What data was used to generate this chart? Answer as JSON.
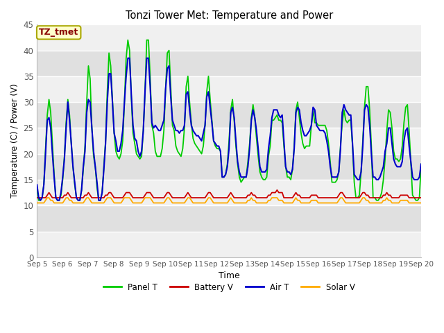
{
  "title": "Tonzi Tower Met: Temperature and Power",
  "xlabel": "Time",
  "ylabel": "Temperature (C) / Power (V)",
  "ylim": [
    0,
    45
  ],
  "yticks": [
    0,
    5,
    10,
    15,
    20,
    25,
    30,
    35,
    40,
    45
  ],
  "x_labels": [
    "Sep 5",
    "Sep 6",
    "Sep 7",
    "Sep 8",
    "Sep 9",
    "Sep 10",
    "Sep 11",
    "Sep 12",
    "Sep 13",
    "Sep 14",
    "Sep 15",
    "Sep 16",
    "Sep 17",
    "Sep 18",
    "Sep 19",
    "Sep 20"
  ],
  "annotation_text": "TZ_tmet",
  "annotation_color": "#880000",
  "annotation_bg": "#ffffcc",
  "annotation_border": "#aaa800",
  "panel_t_color": "#00cc00",
  "battery_v_color": "#cc0000",
  "air_t_color": "#0000cc",
  "solar_v_color": "#ffaa00",
  "bg_outer": "#ffffff",
  "bg_band_light": "#f0f0f0",
  "bg_band_dark": "#e0e0e0",
  "grid_line_color": "#ffffff",
  "panel_t": [
    13.0,
    11.0,
    11.0,
    11.5,
    14.0,
    21.0,
    27.5,
    30.5,
    28.0,
    22.0,
    16.0,
    11.5,
    11.0,
    11.0,
    12.0,
    15.0,
    19.5,
    26.0,
    30.5,
    27.5,
    22.0,
    17.5,
    14.0,
    11.5,
    11.0,
    11.0,
    13.0,
    17.0,
    21.5,
    30.0,
    37.0,
    34.5,
    25.0,
    19.5,
    17.5,
    13.5,
    11.0,
    11.0,
    12.5,
    17.5,
    22.5,
    32.0,
    39.5,
    37.0,
    30.5,
    24.0,
    20.5,
    19.5,
    19.0,
    20.0,
    22.5,
    30.0,
    38.5,
    42.0,
    40.0,
    31.0,
    24.0,
    22.0,
    20.0,
    19.5,
    19.0,
    19.5,
    24.5,
    32.0,
    42.0,
    42.0,
    35.0,
    25.5,
    24.0,
    20.5,
    19.5,
    19.5,
    19.5,
    21.0,
    24.5,
    32.5,
    39.5,
    40.0,
    33.0,
    25.5,
    24.5,
    21.5,
    20.5,
    20.0,
    19.5,
    21.0,
    25.0,
    33.0,
    35.0,
    30.0,
    26.0,
    23.0,
    22.0,
    21.5,
    21.0,
    20.5,
    20.0,
    21.5,
    25.5,
    32.0,
    35.0,
    30.5,
    26.5,
    22.5,
    21.5,
    21.0,
    21.0,
    20.5,
    15.5,
    15.5,
    16.0,
    18.0,
    22.5,
    28.5,
    30.5,
    26.5,
    21.5,
    18.0,
    15.5,
    14.5,
    15.0,
    15.5,
    15.5,
    18.5,
    22.0,
    27.0,
    29.5,
    27.0,
    23.0,
    19.5,
    16.5,
    15.5,
    15.0,
    15.0,
    15.5,
    19.5,
    21.5,
    26.5,
    26.5,
    27.0,
    27.5,
    26.5,
    26.5,
    26.0,
    21.5,
    17.5,
    15.5,
    15.5,
    15.0,
    17.0,
    21.5,
    28.5,
    30.0,
    27.0,
    24.0,
    22.0,
    21.0,
    21.5,
    21.5,
    21.5,
    25.5,
    28.5,
    26.0,
    26.0,
    25.5,
    25.5,
    25.5,
    25.5,
    25.5,
    24.5,
    22.0,
    18.5,
    14.5,
    14.5,
    14.5,
    15.0,
    16.5,
    21.5,
    26.0,
    28.5,
    26.5,
    26.0,
    26.5,
    26.5,
    21.5,
    14.5,
    11.5,
    11.5,
    12.0,
    16.5,
    22.5,
    29.0,
    33.0,
    33.0,
    28.5,
    21.5,
    11.5,
    11.5,
    11.0,
    11.0,
    11.5,
    12.5,
    15.0,
    19.0,
    24.5,
    28.5,
    28.0,
    25.0,
    20.5,
    19.0,
    19.0,
    18.5,
    19.0,
    21.5,
    26.0,
    29.0,
    29.5,
    24.5,
    18.5,
    12.0,
    11.5,
    11.0,
    11.0,
    11.5,
    18.0
  ],
  "air_t": [
    14.0,
    11.5,
    11.0,
    11.5,
    14.0,
    20.0,
    26.5,
    27.0,
    25.0,
    20.0,
    15.5,
    11.5,
    11.0,
    11.0,
    12.5,
    15.5,
    19.0,
    25.0,
    30.0,
    26.5,
    22.0,
    17.5,
    14.5,
    11.5,
    11.0,
    11.0,
    13.0,
    17.5,
    20.5,
    28.0,
    30.5,
    30.0,
    25.0,
    20.5,
    17.5,
    14.5,
    11.0,
    11.0,
    12.5,
    17.0,
    22.0,
    30.0,
    35.5,
    35.5,
    30.0,
    24.0,
    22.5,
    20.5,
    20.5,
    22.0,
    24.5,
    30.0,
    35.0,
    38.5,
    38.5,
    31.5,
    25.5,
    23.0,
    22.5,
    20.5,
    19.5,
    20.5,
    24.5,
    32.0,
    38.5,
    38.5,
    33.0,
    26.0,
    25.0,
    25.5,
    25.0,
    24.5,
    24.5,
    25.5,
    26.5,
    32.5,
    36.5,
    37.0,
    31.0,
    26.5,
    25.5,
    24.5,
    24.5,
    24.0,
    24.5,
    24.5,
    25.5,
    31.5,
    32.0,
    28.5,
    25.5,
    24.5,
    24.0,
    23.5,
    23.5,
    23.0,
    22.5,
    24.0,
    25.5,
    31.0,
    32.0,
    29.0,
    26.0,
    22.5,
    22.0,
    21.5,
    21.5,
    20.5,
    15.5,
    15.5,
    16.0,
    17.5,
    21.0,
    28.0,
    29.0,
    27.0,
    22.5,
    18.5,
    16.5,
    15.5,
    15.5,
    15.5,
    15.5,
    17.5,
    21.0,
    26.5,
    28.5,
    27.0,
    24.5,
    21.0,
    17.5,
    16.5,
    16.5,
    16.5,
    17.0,
    21.0,
    23.5,
    27.0,
    28.5,
    28.5,
    28.5,
    27.5,
    27.0,
    27.5,
    22.5,
    17.5,
    16.5,
    16.5,
    16.0,
    17.0,
    21.0,
    28.0,
    29.0,
    28.5,
    26.0,
    24.5,
    23.5,
    23.5,
    24.0,
    24.5,
    25.5,
    29.0,
    28.5,
    25.5,
    25.0,
    24.5,
    24.5,
    24.5,
    24.0,
    22.5,
    20.5,
    17.5,
    15.5,
    15.5,
    15.5,
    15.5,
    16.5,
    21.0,
    28.0,
    29.5,
    28.5,
    28.0,
    27.5,
    27.5,
    22.0,
    16.0,
    15.5,
    15.0,
    15.0,
    16.5,
    21.5,
    28.5,
    29.5,
    29.0,
    25.5,
    20.0,
    15.5,
    15.5,
    15.0,
    15.0,
    15.5,
    16.5,
    17.5,
    20.5,
    22.0,
    25.0,
    25.0,
    22.0,
    19.0,
    18.0,
    17.5,
    17.5,
    17.5,
    18.5,
    22.5,
    24.5,
    25.0,
    21.5,
    18.5,
    15.5,
    15.0,
    15.0,
    15.0,
    15.5,
    18.0
  ],
  "battery_v": [
    11.5,
    11.5,
    11.5,
    11.5,
    11.5,
    11.5,
    12.0,
    12.5,
    12.0,
    11.5,
    11.5,
    11.5,
    11.5,
    11.5,
    11.5,
    11.5,
    12.0,
    12.0,
    12.5,
    12.0,
    11.5,
    11.5,
    11.5,
    11.5,
    11.5,
    11.5,
    11.5,
    11.5,
    12.0,
    12.0,
    12.5,
    12.0,
    11.5,
    11.5,
    11.5,
    11.5,
    11.5,
    11.5,
    11.5,
    11.5,
    12.0,
    12.0,
    12.5,
    12.5,
    12.0,
    11.5,
    11.5,
    11.5,
    11.5,
    11.5,
    11.5,
    12.0,
    12.5,
    12.5,
    12.5,
    12.0,
    11.5,
    11.5,
    11.5,
    11.5,
    11.5,
    11.5,
    11.5,
    12.0,
    12.5,
    12.5,
    12.5,
    12.0,
    11.5,
    11.5,
    11.5,
    11.5,
    11.5,
    11.5,
    11.5,
    12.0,
    12.5,
    12.5,
    12.0,
    11.5,
    11.5,
    11.5,
    11.5,
    11.5,
    11.5,
    11.5,
    11.5,
    12.0,
    12.5,
    12.0,
    11.5,
    11.5,
    11.5,
    11.5,
    11.5,
    11.5,
    11.5,
    11.5,
    11.5,
    12.0,
    12.5,
    12.5,
    12.0,
    11.5,
    11.5,
    11.5,
    11.5,
    11.5,
    11.5,
    11.5,
    11.5,
    11.5,
    12.0,
    12.5,
    12.0,
    11.5,
    11.5,
    11.5,
    11.5,
    11.5,
    11.5,
    11.5,
    11.5,
    12.0,
    12.0,
    12.5,
    12.0,
    12.0,
    11.5,
    11.5,
    11.5,
    11.5,
    11.5,
    11.5,
    11.5,
    12.0,
    12.0,
    12.5,
    12.5,
    12.5,
    13.0,
    12.5,
    12.5,
    12.5,
    11.5,
    11.5,
    11.5,
    11.5,
    11.5,
    11.5,
    12.0,
    12.5,
    12.0,
    12.0,
    11.5,
    11.5,
    11.5,
    11.5,
    11.5,
    11.5,
    12.0,
    12.0,
    12.0,
    12.0,
    11.5,
    11.5,
    11.5,
    11.5,
    11.5,
    11.5,
    11.5,
    11.5,
    11.5,
    11.5,
    11.5,
    11.5,
    12.0,
    12.5,
    12.5,
    12.0,
    11.5,
    11.5,
    11.5,
    11.5,
    11.5,
    11.5,
    11.5,
    11.5,
    11.5,
    12.0,
    12.5,
    12.5,
    12.0,
    12.0,
    11.5,
    11.5,
    11.5,
    11.5,
    11.5,
    11.5,
    11.5,
    11.5,
    12.0,
    12.0,
    12.5,
    12.0,
    12.0,
    11.5,
    11.5,
    11.5,
    11.5,
    11.5,
    12.0,
    12.0,
    12.0,
    12.0,
    12.0,
    11.5,
    11.5,
    11.5,
    11.5,
    11.5,
    11.5,
    11.5,
    11.5
  ],
  "solar_v": [
    10.5,
    10.5,
    10.5,
    10.5,
    10.5,
    11.0,
    11.5,
    11.5,
    11.0,
    11.0,
    10.5,
    10.5,
    10.5,
    10.5,
    10.5,
    10.5,
    11.0,
    11.5,
    11.5,
    11.0,
    11.0,
    10.5,
    10.5,
    10.5,
    10.5,
    10.5,
    10.5,
    10.5,
    11.0,
    11.5,
    11.5,
    11.0,
    10.5,
    10.5,
    10.5,
    10.5,
    10.5,
    10.5,
    10.5,
    10.5,
    11.0,
    11.5,
    11.5,
    11.5,
    11.0,
    10.5,
    10.5,
    10.5,
    10.5,
    10.5,
    11.0,
    11.5,
    11.5,
    11.5,
    11.5,
    11.0,
    10.5,
    10.5,
    10.5,
    10.5,
    10.5,
    10.5,
    11.0,
    11.5,
    11.5,
    11.5,
    11.5,
    11.0,
    10.5,
    10.5,
    10.5,
    10.5,
    10.5,
    10.5,
    10.5,
    11.0,
    11.5,
    11.5,
    11.0,
    10.5,
    10.5,
    10.5,
    10.5,
    10.5,
    10.5,
    10.5,
    10.5,
    11.0,
    11.5,
    11.5,
    11.0,
    10.5,
    10.5,
    10.5,
    10.5,
    10.5,
    10.5,
    10.5,
    10.5,
    11.0,
    11.5,
    11.5,
    11.0,
    10.5,
    10.5,
    10.5,
    10.5,
    10.5,
    10.5,
    10.5,
    10.5,
    10.5,
    11.0,
    11.5,
    11.0,
    10.5,
    10.5,
    10.5,
    10.5,
    10.5,
    10.5,
    10.5,
    10.5,
    11.0,
    11.0,
    11.5,
    11.0,
    11.0,
    10.5,
    10.5,
    10.5,
    10.5,
    10.5,
    10.5,
    10.5,
    11.0,
    11.0,
    11.5,
    11.5,
    11.5,
    11.5,
    11.0,
    11.0,
    11.0,
    10.5,
    10.5,
    10.5,
    10.5,
    10.5,
    10.5,
    11.0,
    11.5,
    11.0,
    11.0,
    10.5,
    10.5,
    10.5,
    10.5,
    10.5,
    10.5,
    11.0,
    11.0,
    11.0,
    11.0,
    10.5,
    10.5,
    10.5,
    10.5,
    10.5,
    10.5,
    10.5,
    10.5,
    10.5,
    10.5,
    10.5,
    10.5,
    11.0,
    11.5,
    11.5,
    11.0,
    10.5,
    10.5,
    10.5,
    10.5,
    10.5,
    10.5,
    10.5,
    10.5,
    10.5,
    11.0,
    11.5,
    11.5,
    11.0,
    11.0,
    10.5,
    10.5,
    10.5,
    10.5,
    10.5,
    10.5,
    10.5,
    10.5,
    11.0,
    11.0,
    11.5,
    11.0,
    11.0,
    10.5,
    10.5,
    10.5,
    10.5,
    10.5,
    11.0,
    11.0,
    11.0,
    11.0,
    11.0,
    10.5,
    10.5,
    10.5,
    10.5,
    10.5,
    10.5,
    10.5,
    10.5
  ]
}
